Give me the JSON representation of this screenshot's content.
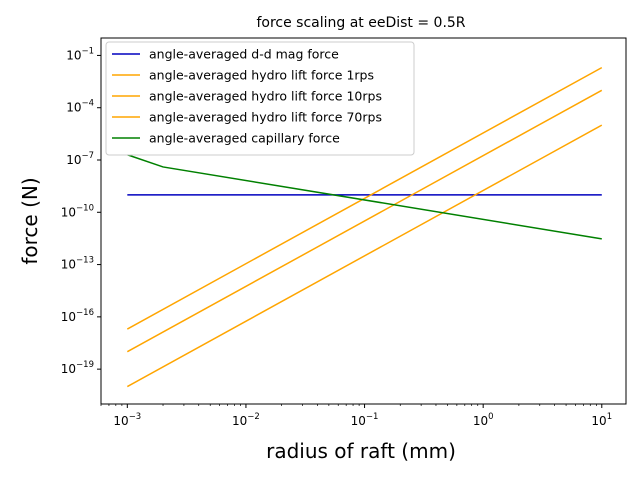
{
  "chart_data": {
    "type": "line",
    "title": "force scaling at eeDist = 0.5R",
    "xlabel": "radius of raft (mm)",
    "ylabel": "force (N)",
    "xscale": "log",
    "yscale": "log",
    "xlim": [
      0.0006,
      16
    ],
    "ylim": [
      1e-21,
      1.0
    ],
    "x_ticks": [
      0.001,
      0.01,
      0.1,
      1,
      10
    ],
    "x_tick_labels": [
      {
        "base": "10",
        "exp": "−3"
      },
      {
        "base": "10",
        "exp": "−2"
      },
      {
        "base": "10",
        "exp": "−1"
      },
      {
        "base": "10",
        "exp": "0"
      },
      {
        "base": "10",
        "exp": "1"
      }
    ],
    "y_ticks": [
      1e-19,
      1e-16,
      1e-13,
      1e-10,
      1e-07,
      0.0001,
      0.1
    ],
    "y_tick_labels": [
      {
        "base": "10",
        "exp": "−19"
      },
      {
        "base": "10",
        "exp": "−16"
      },
      {
        "base": "10",
        "exp": "−13"
      },
      {
        "base": "10",
        "exp": "−10"
      },
      {
        "base": "10",
        "exp": "−7"
      },
      {
        "base": "10",
        "exp": "−4"
      },
      {
        "base": "10",
        "exp": "−1"
      }
    ],
    "legend_position": "top-left",
    "grid": false,
    "series": [
      {
        "name": "angle-averaged d-d mag force",
        "color": "#0000bf",
        "x": [
          0.001,
          10
        ],
        "y": [
          1e-09,
          1e-09
        ]
      },
      {
        "name": "angle-averaged hydro lift force 1rps",
        "color": "#ffa500",
        "x": [
          0.001,
          10
        ],
        "y": [
          1e-20,
          1e-05
        ]
      },
      {
        "name": "angle-averaged hydro lift force 10rps",
        "color": "#ffa500",
        "x": [
          0.001,
          10
        ],
        "y": [
          1e-18,
          0.001
        ]
      },
      {
        "name": "angle-averaged hydro lift force 70rps",
        "color": "#ffa500",
        "x": [
          0.001,
          10
        ],
        "y": [
          2e-17,
          0.02
        ]
      },
      {
        "name": "angle-averaged capillary force",
        "color": "#008000",
        "x": [
          0.001,
          0.002,
          10
        ],
        "y": [
          2e-07,
          4e-08,
          3e-12
        ]
      }
    ]
  }
}
